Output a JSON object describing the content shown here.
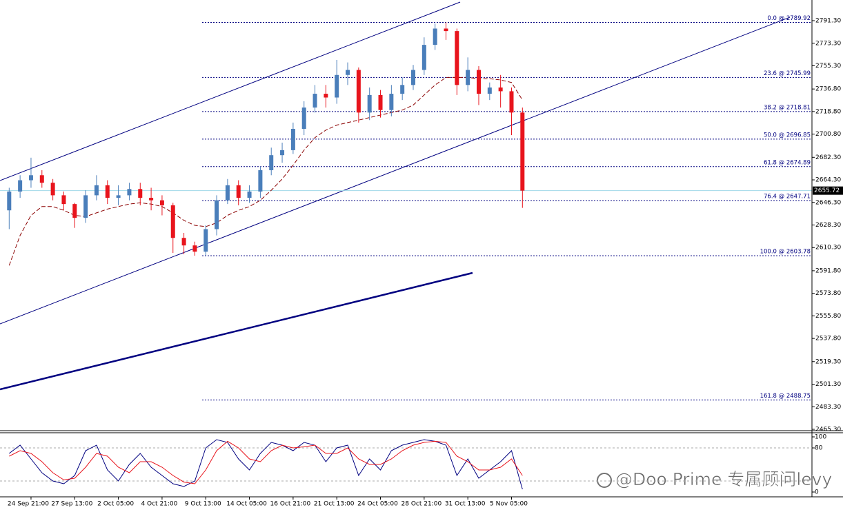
{
  "chart_data": {
    "type": "candlestick",
    "categories": [
      null,
      null,
      "24 Sep 21:00",
      null,
      null,
      null,
      "27 Sep 13:00",
      null,
      null,
      null,
      "2 Oct 05:00",
      null,
      null,
      null,
      "4 Oct 21:00",
      null,
      null,
      null,
      "9 Oct 13:00",
      null,
      null,
      null,
      "14 Oct 05:00",
      null,
      null,
      null,
      "16 Oct 21:00",
      null,
      null,
      null,
      "21 Oct 13:00",
      null,
      null,
      null,
      "24 Oct 05:00",
      null,
      null,
      null,
      "28 Oct 21:00",
      null,
      null,
      null,
      "31 Oct 13:00",
      null,
      null,
      null,
      "5 Nov 05:00",
      null
    ],
    "open": [
      2640,
      2655,
      2664,
      2668,
      2662,
      2652,
      2645,
      2634,
      2652,
      2660,
      2650,
      2652,
      2657,
      2650,
      2648,
      2644,
      2618,
      2612,
      2607,
      2625,
      2648,
      2660,
      2650,
      2655,
      2672,
      2684,
      2688,
      2705,
      2722,
      2733,
      2730,
      2748,
      2752,
      2718,
      2732,
      2720,
      2733,
      2740,
      2752,
      2772,
      2785,
      2783,
      2740,
      2752,
      2733,
      2738,
      2735,
      2718
    ],
    "high": [
      2658,
      2668,
      2682,
      2672,
      2665,
      2655,
      2646,
      2656,
      2668,
      2664,
      2660,
      2662,
      2662,
      2658,
      2652,
      2646,
      2622,
      2615,
      2628,
      2652,
      2665,
      2664,
      2660,
      2675,
      2690,
      2694,
      2710,
      2727,
      2740,
      2740,
      2760,
      2758,
      2754,
      2738,
      2736,
      2740,
      2746,
      2756,
      2778,
      2789,
      2789.92,
      2785,
      2762,
      2755,
      2742,
      2748,
      2738,
      2722
    ],
    "low": [
      2625,
      2650,
      2658,
      2658,
      2648,
      2640,
      2626,
      2630,
      2648,
      2645,
      2644,
      2648,
      2644,
      2640,
      2636,
      2606,
      2605,
      2603.78,
      2604,
      2620,
      2645,
      2644,
      2646,
      2650,
      2668,
      2678,
      2685,
      2700,
      2718,
      2722,
      2725,
      2740,
      2710,
      2712,
      2714,
      2715,
      2728,
      2736,
      2748,
      2768,
      2776,
      2732,
      2735,
      2724,
      2728,
      2722,
      2700,
      2642
    ],
    "close": [
      2655,
      2664,
      2668,
      2662,
      2652,
      2645,
      2634,
      2652,
      2660,
      2650,
      2652,
      2657,
      2650,
      2648,
      2644,
      2618,
      2612,
      2607,
      2625,
      2648,
      2660,
      2650,
      2655,
      2672,
      2684,
      2688,
      2705,
      2722,
      2733,
      2730,
      2748,
      2752,
      2718,
      2732,
      2720,
      2733,
      2740,
      2752,
      2772,
      2785,
      2783,
      2740,
      2752,
      2733,
      2738,
      2735,
      2718,
      2655.72
    ],
    "up_color": "#4a7eba",
    "down_color": "#e8141c",
    "moving_average": {
      "color": "#8b0000",
      "values": [
        2596,
        2620,
        2636,
        2643,
        2643,
        2640,
        2636,
        2635,
        2638,
        2641,
        2643,
        2645,
        2646,
        2645,
        2643,
        2638,
        2632,
        2628,
        2627,
        2630,
        2636,
        2640,
        2643,
        2648,
        2656,
        2665,
        2676,
        2688,
        2698,
        2704,
        2708,
        2710,
        2712,
        2714,
        2716,
        2718,
        2720,
        2724,
        2732,
        2740,
        2746,
        2746,
        2746,
        2745,
        2745,
        2744,
        2742,
        2728
      ]
    },
    "ylim": [
      2464.2,
      2807.8
    ],
    "yticks": [
      {
        "value": 2791.3,
        "label": "2791.30"
      },
      {
        "value": 2773.3,
        "label": "2773.30"
      },
      {
        "value": 2755.3,
        "label": "2755.30"
      },
      {
        "value": 2736.8,
        "label": "2736.80"
      },
      {
        "value": 2718.8,
        "label": "2718.80"
      },
      {
        "value": 2700.8,
        "label": "2700.80"
      },
      {
        "value": 2682.3,
        "label": "2682.30"
      },
      {
        "value": 2664.3,
        "label": "2664.30"
      },
      {
        "value": 2646.3,
        "label": "2646.30"
      },
      {
        "value": 2628.3,
        "label": "2628.30"
      },
      {
        "value": 2610.3,
        "label": "2610.30"
      },
      {
        "value": 2591.8,
        "label": "2591.80"
      },
      {
        "value": 2573.8,
        "label": "2573.80"
      },
      {
        "value": 2555.8,
        "label": "2555.80"
      },
      {
        "value": 2537.8,
        "label": "2537.80"
      },
      {
        "value": 2519.3,
        "label": "2519.30"
      },
      {
        "value": 2501.3,
        "label": "2501.30"
      },
      {
        "value": 2483.3,
        "label": "2483.30"
      },
      {
        "value": 2465.3,
        "label": "2465.30"
      }
    ],
    "last_price": 2655.72,
    "fibonacci": [
      {
        "label": "0.0 @ 2789.92",
        "price": 2789.92
      },
      {
        "label": "23.6 @ 2745.99",
        "price": 2745.99
      },
      {
        "label": "38.2 @ 2718.81",
        "price": 2718.81
      },
      {
        "label": "50.0 @ 2696.85",
        "price": 2696.85
      },
      {
        "label": "61.8 @ 2674.89",
        "price": 2674.89
      },
      {
        "label": "76.4 @ 2647.71",
        "price": 2647.71
      },
      {
        "label": "100.0 @ 2603.78",
        "price": 2603.78
      },
      {
        "label": "161.8 @ 2488.75",
        "price": 2488.75
      }
    ],
    "stochastic": {
      "ylim": [
        0,
        100
      ],
      "yticks": [
        100,
        80,
        0
      ],
      "levels": [
        80,
        20
      ],
      "series": [
        {
          "color": "#000080",
          "values": [
            70,
            85,
            60,
            35,
            20,
            15,
            30,
            75,
            85,
            40,
            20,
            50,
            70,
            45,
            30,
            15,
            10,
            20,
            80,
            95,
            90,
            60,
            40,
            70,
            90,
            85,
            75,
            90,
            85,
            55,
            80,
            85,
            30,
            60,
            40,
            75,
            85,
            90,
            95,
            92,
            85,
            30,
            60,
            25,
            40,
            55,
            75,
            5
          ]
        },
        {
          "color": "#e8141c",
          "values": [
            65,
            75,
            70,
            55,
            35,
            22,
            25,
            45,
            70,
            65,
            45,
            35,
            55,
            55,
            45,
            30,
            18,
            15,
            40,
            75,
            92,
            80,
            60,
            55,
            75,
            85,
            80,
            82,
            85,
            70,
            70,
            80,
            60,
            50,
            50,
            60,
            75,
            85,
            90,
            92,
            90,
            65,
            55,
            40,
            40,
            45,
            60,
            30
          ]
        }
      ]
    },
    "watermark": "@Doo Prime 专属顾问levy"
  }
}
